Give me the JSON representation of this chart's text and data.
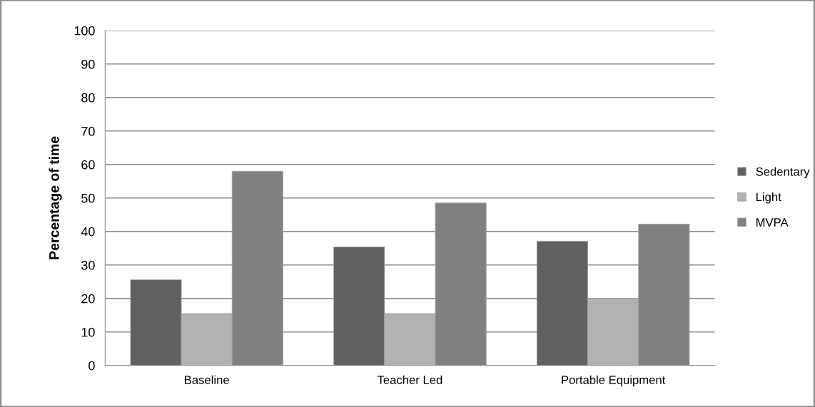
{
  "chart_data": {
    "type": "bar",
    "ylabel": "Percentage of time",
    "categories": [
      "Baseline",
      "Teacher Led",
      "Portable Equipment"
    ],
    "series": [
      {
        "name": "Sedentary",
        "color": "#616161",
        "values": [
          25.6,
          35.4,
          37.1
        ]
      },
      {
        "name": "Light",
        "color": "#b2b2b2",
        "values": [
          15.5,
          15.5,
          20.0
        ]
      },
      {
        "name": "MVPA",
        "color": "#808080",
        "values": [
          58.0,
          48.5,
          42.2
        ]
      }
    ],
    "ylim": [
      0,
      100
    ],
    "yticks": [
      0,
      10,
      20,
      30,
      40,
      50,
      60,
      70,
      80,
      90,
      100
    ],
    "grid": "y",
    "legend": "right"
  }
}
